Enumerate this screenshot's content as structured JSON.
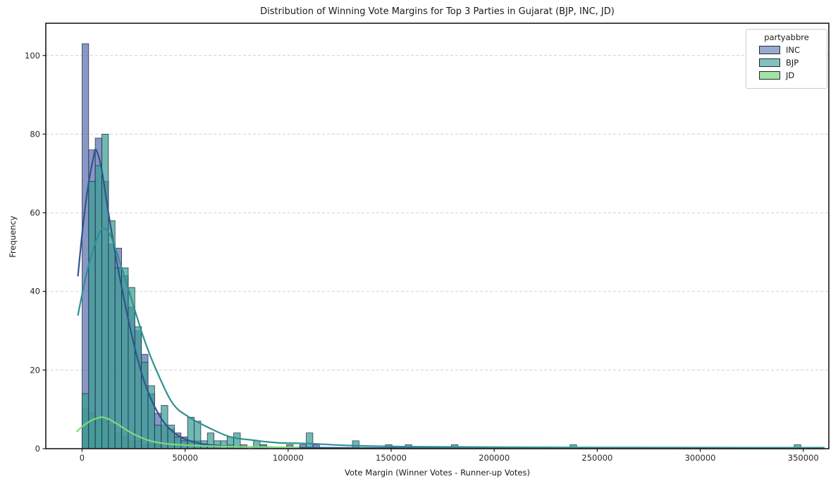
{
  "title": "Distribution of Winning Vote Margins for Top 3 Parties in Gujarat (BJP, INC, JD)",
  "axes": {
    "xlabel": "Vote Margin (Winner Votes - Runner-up Votes)",
    "ylabel": "Frequency",
    "x_tick_values": [
      0,
      50000,
      100000,
      150000,
      200000,
      250000,
      300000,
      350000
    ],
    "x_tick_labels": [
      "0",
      "50000",
      "100000",
      "150000",
      "200000",
      "250000",
      "300000",
      "350000"
    ],
    "y_tick_values": [
      0,
      20,
      40,
      60,
      80,
      100
    ],
    "y_tick_labels": [
      "0",
      "20",
      "40",
      "60",
      "80",
      "100"
    ],
    "xlim": [
      -17600,
      362400
    ],
    "ylim": [
      0,
      108.2
    ],
    "grid": "horizontal-dashed"
  },
  "legend": {
    "title": "partyabbre",
    "entries": [
      {
        "label": "INC",
        "color": "#9ca8cd"
      },
      {
        "label": "BJP",
        "color": "#82c1bc"
      },
      {
        "label": "JD",
        "color": "#a3e2a0"
      }
    ]
  },
  "style": {
    "grid_color": "#cfcfcf",
    "spine_color": "#1a1a1a",
    "text_color": "#262626",
    "background": "#ffffff",
    "bar_edge": "#1e2b3c",
    "bar_alpha": 0.72
  },
  "chart_data": {
    "type": "bar",
    "subtype": "histogram-with-kde-overlay",
    "bin_width": 3200,
    "legend_position": "upper-right",
    "series": [
      {
        "name": "INC",
        "fill": "#5a6fae",
        "kde_color": "#31538c",
        "bins": [
          [
            0,
            103
          ],
          [
            3200,
            76
          ],
          [
            6400,
            79
          ],
          [
            9600,
            68
          ],
          [
            12800,
            52
          ],
          [
            16000,
            51
          ],
          [
            19200,
            44
          ],
          [
            22400,
            36
          ],
          [
            25600,
            30
          ],
          [
            28800,
            24
          ],
          [
            32000,
            14
          ],
          [
            35200,
            9
          ],
          [
            38400,
            6
          ],
          [
            41600,
            5
          ],
          [
            44800,
            4
          ],
          [
            48000,
            3
          ],
          [
            51200,
            2
          ],
          [
            54400,
            2
          ],
          [
            57600,
            1
          ],
          [
            60800,
            1
          ],
          [
            64000,
            1
          ],
          [
            70400,
            1
          ],
          [
            76800,
            1
          ],
          [
            86400,
            1
          ],
          [
            99200,
            1
          ],
          [
            112000,
            1
          ]
        ],
        "kde": [
          [
            -2000,
            44
          ],
          [
            500,
            57
          ],
          [
            3000,
            67
          ],
          [
            5500,
            74
          ],
          [
            6800,
            76
          ],
          [
            9500,
            71
          ],
          [
            12500,
            61
          ],
          [
            16000,
            50
          ],
          [
            20000,
            39
          ],
          [
            24500,
            28
          ],
          [
            29000,
            19
          ],
          [
            34000,
            12
          ],
          [
            40000,
            6.5
          ],
          [
            47000,
            3.2
          ],
          [
            55000,
            1.6
          ],
          [
            65000,
            0.8
          ],
          [
            80000,
            0.45
          ],
          [
            100000,
            0.3
          ],
          [
            130000,
            0.2
          ],
          [
            180000,
            0.12
          ],
          [
            250000,
            0.08
          ],
          [
            360000,
            0.06
          ]
        ]
      },
      {
        "name": "BJP",
        "fill": "#3a9e96",
        "kde_color": "#2e9191",
        "bins": [
          [
            0,
            14
          ],
          [
            3200,
            68
          ],
          [
            6400,
            72
          ],
          [
            9600,
            80
          ],
          [
            12800,
            58
          ],
          [
            16000,
            46
          ],
          [
            19200,
            46
          ],
          [
            22400,
            41
          ],
          [
            25600,
            31
          ],
          [
            28800,
            22
          ],
          [
            32000,
            16
          ],
          [
            35200,
            6
          ],
          [
            38400,
            11
          ],
          [
            41600,
            6
          ],
          [
            44800,
            3
          ],
          [
            48000,
            2
          ],
          [
            51200,
            8
          ],
          [
            54400,
            7
          ],
          [
            57600,
            2
          ],
          [
            60800,
            4
          ],
          [
            64000,
            2
          ],
          [
            67200,
            2
          ],
          [
            70400,
            3
          ],
          [
            73600,
            4
          ],
          [
            83200,
            2
          ],
          [
            86400,
            1
          ],
          [
            105600,
            1
          ],
          [
            108800,
            4
          ],
          [
            131200,
            2
          ],
          [
            147200,
            1
          ],
          [
            156800,
            1
          ],
          [
            179200,
            1
          ],
          [
            236800,
            1
          ],
          [
            345600,
            1
          ]
        ],
        "kde": [
          [
            -2000,
            34
          ],
          [
            1500,
            43
          ],
          [
            5000,
            50
          ],
          [
            8500,
            55
          ],
          [
            11000,
            56
          ],
          [
            14000,
            54
          ],
          [
            18000,
            48
          ],
          [
            24000,
            38
          ],
          [
            30000,
            28
          ],
          [
            36000,
            20
          ],
          [
            44000,
            11.5
          ],
          [
            52000,
            8
          ],
          [
            62000,
            5.2
          ],
          [
            72000,
            3.0
          ],
          [
            84000,
            2.1
          ],
          [
            95000,
            1.5
          ],
          [
            110000,
            1.3
          ],
          [
            130000,
            0.8
          ],
          [
            160000,
            0.5
          ],
          [
            200000,
            0.38
          ],
          [
            250000,
            0.3
          ],
          [
            300000,
            0.27
          ],
          [
            360000,
            0.25
          ]
        ]
      },
      {
        "name": "JD",
        "fill": "#62c765",
        "kde_color": "#7fd97a",
        "bins": [
          [
            0,
            10
          ],
          [
            3200,
            9
          ],
          [
            6400,
            8
          ],
          [
            9600,
            7
          ],
          [
            12800,
            6
          ],
          [
            16000,
            4
          ],
          [
            19200,
            3
          ],
          [
            22400,
            2
          ],
          [
            25600,
            2
          ],
          [
            28800,
            1
          ],
          [
            32000,
            1
          ],
          [
            35200,
            1
          ]
        ],
        "kde": [
          [
            -2500,
            4.4
          ],
          [
            1000,
            6
          ],
          [
            5000,
            7.3
          ],
          [
            9500,
            8
          ],
          [
            13000,
            7.5
          ],
          [
            17000,
            6.3
          ],
          [
            22000,
            4.6
          ],
          [
            27000,
            3.2
          ],
          [
            33000,
            2
          ],
          [
            40000,
            1.3
          ],
          [
            50000,
            0.9
          ],
          [
            60000,
            0.7
          ],
          [
            75000,
            0.5
          ],
          [
            90000,
            0.4
          ],
          [
            105000,
            0.3
          ]
        ]
      }
    ]
  }
}
